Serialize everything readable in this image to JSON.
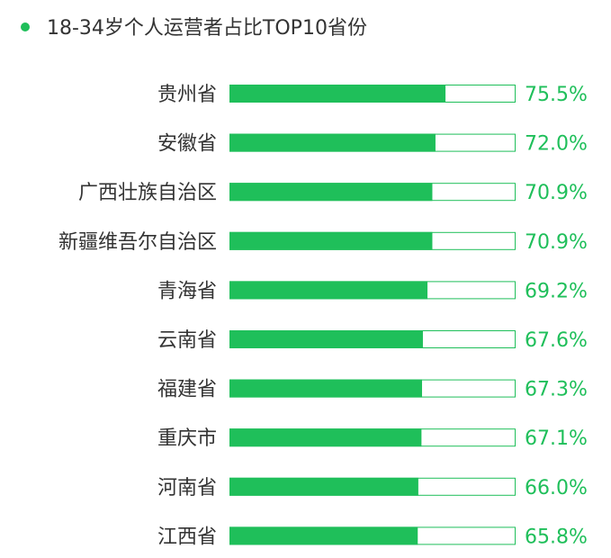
{
  "chart_data": {
    "type": "bar",
    "orientation": "horizontal",
    "title": "18-34岁个人运营者占比TOP10省份",
    "categories": [
      "贵州省",
      "安徽省",
      "广西壮族自治区",
      "新疆维吾尔自治区",
      "青海省",
      "云南省",
      "福建省",
      "重庆市",
      "河南省",
      "江西省"
    ],
    "values": [
      75.5,
      72.0,
      70.9,
      70.9,
      69.2,
      67.6,
      67.3,
      67.1,
      66.0,
      65.8
    ],
    "value_labels": [
      "75.5%",
      "72.0%",
      "70.9%",
      "70.9%",
      "69.2%",
      "67.6%",
      "67.3%",
      "67.1%",
      "66.0%",
      "65.8%"
    ],
    "xlim": [
      0,
      100
    ],
    "grid": false,
    "legend": "none",
    "colors": {
      "bar_fill": "#1fbf5a",
      "bar_track_border": "#1fbf5a",
      "bar_track_bg": "#ffffff",
      "value_text": "#1fbf5a",
      "category_text": "#333333",
      "title_dot": "#1fbf5a",
      "title_text": "#333333"
    }
  }
}
